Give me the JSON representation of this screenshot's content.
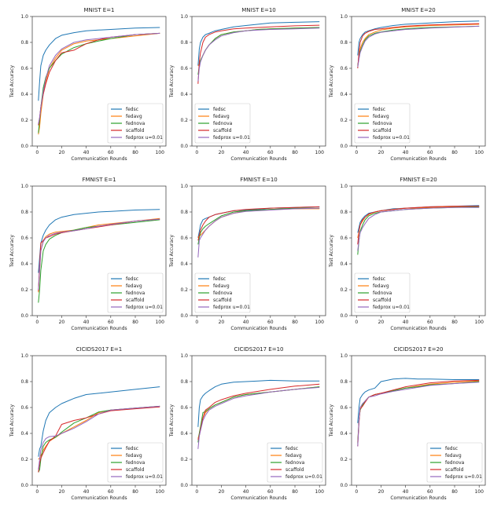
{
  "chart_data": {
    "type": "line",
    "legend_labels": [
      "fedsc",
      "fedavg",
      "fednova",
      "scaffold",
      "fedprox u=0.01"
    ],
    "colors": [
      "#1f77b4",
      "#ff7f0e",
      "#2ca02c",
      "#d62728",
      "#9467bd"
    ],
    "x": [
      1,
      2,
      3,
      5,
      7,
      10,
      15,
      20,
      30,
      40,
      50,
      60,
      80,
      100
    ],
    "xlabel": "Communication Rounds",
    "ylabel": "Test Accuracy",
    "xticks": [
      0,
      20,
      40,
      60,
      80,
      100
    ],
    "yticks": [
      "0.0",
      "0.2",
      "0.4",
      "0.6",
      "0.8",
      "1.0"
    ],
    "xlim": [
      -4,
      105
    ],
    "ylim": [
      0,
      1
    ],
    "grid": false,
    "panels": [
      {
        "title": "MNIST E=1",
        "legend": "lower-right",
        "series": [
          [
            0.35,
            0.5,
            0.62,
            0.7,
            0.74,
            0.78,
            0.83,
            0.855,
            0.875,
            0.89,
            0.895,
            0.9,
            0.91,
            0.915
          ],
          [
            0.09,
            0.15,
            0.25,
            0.4,
            0.5,
            0.6,
            0.68,
            0.74,
            0.79,
            0.81,
            0.82,
            0.83,
            0.85,
            0.87
          ],
          [
            0.1,
            0.2,
            0.3,
            0.45,
            0.53,
            0.6,
            0.66,
            0.71,
            0.76,
            0.79,
            0.81,
            0.83,
            0.86,
            0.87
          ],
          [
            0.16,
            0.22,
            0.3,
            0.4,
            0.48,
            0.57,
            0.66,
            0.72,
            0.74,
            0.79,
            0.82,
            0.84,
            0.86,
            0.87
          ],
          [
            0.17,
            0.22,
            0.3,
            0.42,
            0.52,
            0.62,
            0.7,
            0.75,
            0.8,
            0.82,
            0.83,
            0.84,
            0.86,
            0.87
          ]
        ]
      },
      {
        "title": "MNIST E=10",
        "legend": "lower-left",
        "series": [
          [
            0.62,
            0.75,
            0.8,
            0.84,
            0.86,
            0.87,
            0.89,
            0.9,
            0.92,
            0.93,
            0.94,
            0.95,
            0.955,
            0.96
          ],
          [
            0.62,
            0.63,
            0.66,
            0.7,
            0.74,
            0.78,
            0.83,
            0.86,
            0.88,
            0.89,
            0.9,
            0.905,
            0.91,
            0.915
          ],
          [
            0.55,
            0.62,
            0.66,
            0.7,
            0.74,
            0.78,
            0.83,
            0.86,
            0.88,
            0.89,
            0.9,
            0.905,
            0.91,
            0.915
          ],
          [
            0.48,
            0.65,
            0.72,
            0.8,
            0.84,
            0.86,
            0.88,
            0.89,
            0.905,
            0.91,
            0.915,
            0.92,
            0.928,
            0.933
          ],
          [
            0.5,
            0.6,
            0.65,
            0.7,
            0.74,
            0.78,
            0.82,
            0.85,
            0.875,
            0.89,
            0.895,
            0.9,
            0.905,
            0.91
          ]
        ]
      },
      {
        "title": "MNIST E=20",
        "legend": "lower-left",
        "series": [
          [
            0.7,
            0.8,
            0.83,
            0.86,
            0.88,
            0.89,
            0.905,
            0.915,
            0.93,
            0.94,
            0.945,
            0.95,
            0.96,
            0.965
          ],
          [
            0.61,
            0.7,
            0.75,
            0.8,
            0.83,
            0.86,
            0.88,
            0.895,
            0.91,
            0.92,
            0.925,
            0.93,
            0.935,
            0.94
          ],
          [
            0.62,
            0.68,
            0.73,
            0.78,
            0.82,
            0.85,
            0.87,
            0.88,
            0.895,
            0.905,
            0.91,
            0.915,
            0.92,
            0.925
          ],
          [
            0.6,
            0.72,
            0.8,
            0.85,
            0.87,
            0.885,
            0.9,
            0.905,
            0.915,
            0.925,
            0.93,
            0.935,
            0.94,
            0.945
          ],
          [
            0.61,
            0.67,
            0.72,
            0.77,
            0.81,
            0.84,
            0.865,
            0.878,
            0.89,
            0.9,
            0.905,
            0.91,
            0.918,
            0.925
          ]
        ]
      },
      {
        "title": "FMNIST E=1",
        "legend": "lower-right",
        "series": [
          [
            0.33,
            0.45,
            0.56,
            0.62,
            0.66,
            0.7,
            0.74,
            0.76,
            0.78,
            0.79,
            0.8,
            0.805,
            0.815,
            0.82
          ],
          [
            0.18,
            0.35,
            0.5,
            0.58,
            0.61,
            0.63,
            0.645,
            0.65,
            0.66,
            0.68,
            0.7,
            0.71,
            0.73,
            0.75
          ],
          [
            0.1,
            0.2,
            0.35,
            0.5,
            0.55,
            0.59,
            0.62,
            0.64,
            0.66,
            0.68,
            0.69,
            0.7,
            0.72,
            0.74
          ],
          [
            0.19,
            0.4,
            0.56,
            0.58,
            0.6,
            0.61,
            0.63,
            0.64,
            0.655,
            0.67,
            0.685,
            0.7,
            0.73,
            0.745
          ],
          [
            0.2,
            0.35,
            0.5,
            0.57,
            0.6,
            0.62,
            0.635,
            0.645,
            0.655,
            0.67,
            0.69,
            0.705,
            0.73,
            0.745
          ]
        ]
      },
      {
        "title": "FMNIST E=10",
        "legend": "lower-left",
        "series": [
          [
            0.6,
            0.65,
            0.7,
            0.74,
            0.75,
            0.76,
            0.78,
            0.79,
            0.81,
            0.815,
            0.82,
            0.83,
            0.835,
            0.84
          ],
          [
            0.6,
            0.62,
            0.62,
            0.64,
            0.66,
            0.69,
            0.73,
            0.76,
            0.79,
            0.81,
            0.815,
            0.82,
            0.825,
            0.825
          ],
          [
            0.55,
            0.6,
            0.64,
            0.67,
            0.69,
            0.71,
            0.74,
            0.77,
            0.8,
            0.81,
            0.815,
            0.82,
            0.83,
            0.83
          ],
          [
            0.58,
            0.62,
            0.66,
            0.7,
            0.73,
            0.76,
            0.78,
            0.79,
            0.81,
            0.82,
            0.825,
            0.83,
            0.835,
            0.84
          ],
          [
            0.45,
            0.58,
            0.6,
            0.63,
            0.66,
            0.69,
            0.73,
            0.76,
            0.79,
            0.805,
            0.81,
            0.815,
            0.825,
            0.83
          ]
        ]
      },
      {
        "title": "FMNIST E=20",
        "legend": "lower-left",
        "series": [
          [
            0.64,
            0.68,
            0.72,
            0.75,
            0.77,
            0.79,
            0.8,
            0.81,
            0.825,
            0.83,
            0.835,
            0.84,
            0.845,
            0.85
          ],
          [
            0.6,
            0.65,
            0.7,
            0.73,
            0.76,
            0.78,
            0.8,
            0.81,
            0.82,
            0.83,
            0.83,
            0.835,
            0.84,
            0.84
          ],
          [
            0.47,
            0.58,
            0.65,
            0.7,
            0.74,
            0.77,
            0.79,
            0.8,
            0.81,
            0.82,
            0.825,
            0.83,
            0.835,
            0.84
          ],
          [
            0.55,
            0.65,
            0.7,
            0.74,
            0.76,
            0.785,
            0.8,
            0.81,
            0.82,
            0.83,
            0.835,
            0.84,
            0.845,
            0.845
          ],
          [
            0.5,
            0.58,
            0.64,
            0.68,
            0.71,
            0.75,
            0.78,
            0.8,
            0.81,
            0.82,
            0.825,
            0.83,
            0.835,
            0.835
          ]
        ]
      },
      {
        "title": "CICIDS2017 E=1",
        "legend": "lower-right",
        "series": [
          [
            0.22,
            0.28,
            0.3,
            0.42,
            0.5,
            0.56,
            0.6,
            0.63,
            0.67,
            0.7,
            0.71,
            0.72,
            0.74,
            0.76
          ],
          [
            0.2,
            0.21,
            0.23,
            0.27,
            0.3,
            0.34,
            0.37,
            0.4,
            0.45,
            0.5,
            0.56,
            0.58,
            0.595,
            0.61
          ],
          [
            0.1,
            0.12,
            0.2,
            0.3,
            0.33,
            0.35,
            0.37,
            0.41,
            0.48,
            0.52,
            0.565,
            0.58,
            0.595,
            0.61
          ],
          [
            0.1,
            0.17,
            0.21,
            0.25,
            0.29,
            0.34,
            0.38,
            0.47,
            0.5,
            0.52,
            0.55,
            0.575,
            0.59,
            0.605
          ],
          [
            0.12,
            0.2,
            0.27,
            0.33,
            0.36,
            0.375,
            0.38,
            0.4,
            0.44,
            0.49,
            0.55,
            0.58,
            0.595,
            0.61
          ]
        ]
      },
      {
        "title": "CICIDS2017 E=10",
        "legend": "lower-right",
        "series": [
          [
            0.45,
            0.6,
            0.66,
            0.69,
            0.71,
            0.73,
            0.76,
            0.78,
            0.795,
            0.8,
            0.805,
            0.81,
            0.805,
            0.805
          ],
          [
            0.36,
            0.4,
            0.45,
            0.52,
            0.56,
            0.59,
            0.62,
            0.64,
            0.68,
            0.7,
            0.71,
            0.72,
            0.74,
            0.76
          ],
          [
            0.33,
            0.4,
            0.45,
            0.56,
            0.57,
            0.59,
            0.62,
            0.64,
            0.68,
            0.7,
            0.71,
            0.72,
            0.74,
            0.76
          ],
          [
            0.35,
            0.38,
            0.43,
            0.52,
            0.58,
            0.6,
            0.64,
            0.66,
            0.69,
            0.71,
            0.725,
            0.74,
            0.765,
            0.78
          ],
          [
            0.28,
            0.38,
            0.42,
            0.5,
            0.54,
            0.58,
            0.61,
            0.63,
            0.67,
            0.69,
            0.705,
            0.72,
            0.74,
            0.755
          ]
        ]
      },
      {
        "title": "CICIDS2017 E=20",
        "legend": "lower-right",
        "series": [
          [
            0.48,
            0.6,
            0.67,
            0.7,
            0.72,
            0.735,
            0.75,
            0.8,
            0.82,
            0.825,
            0.82,
            0.82,
            0.815,
            0.815
          ],
          [
            0.33,
            0.5,
            0.58,
            0.62,
            0.65,
            0.68,
            0.7,
            0.71,
            0.73,
            0.75,
            0.765,
            0.78,
            0.795,
            0.805
          ],
          [
            0.32,
            0.5,
            0.58,
            0.62,
            0.65,
            0.68,
            0.7,
            0.71,
            0.73,
            0.75,
            0.76,
            0.775,
            0.785,
            0.8
          ],
          [
            0.3,
            0.48,
            0.59,
            0.61,
            0.64,
            0.68,
            0.7,
            0.71,
            0.735,
            0.76,
            0.775,
            0.79,
            0.805,
            0.81
          ],
          [
            0.3,
            0.5,
            0.6,
            0.63,
            0.65,
            0.68,
            0.69,
            0.705,
            0.725,
            0.74,
            0.755,
            0.77,
            0.785,
            0.795
          ]
        ]
      }
    ]
  }
}
